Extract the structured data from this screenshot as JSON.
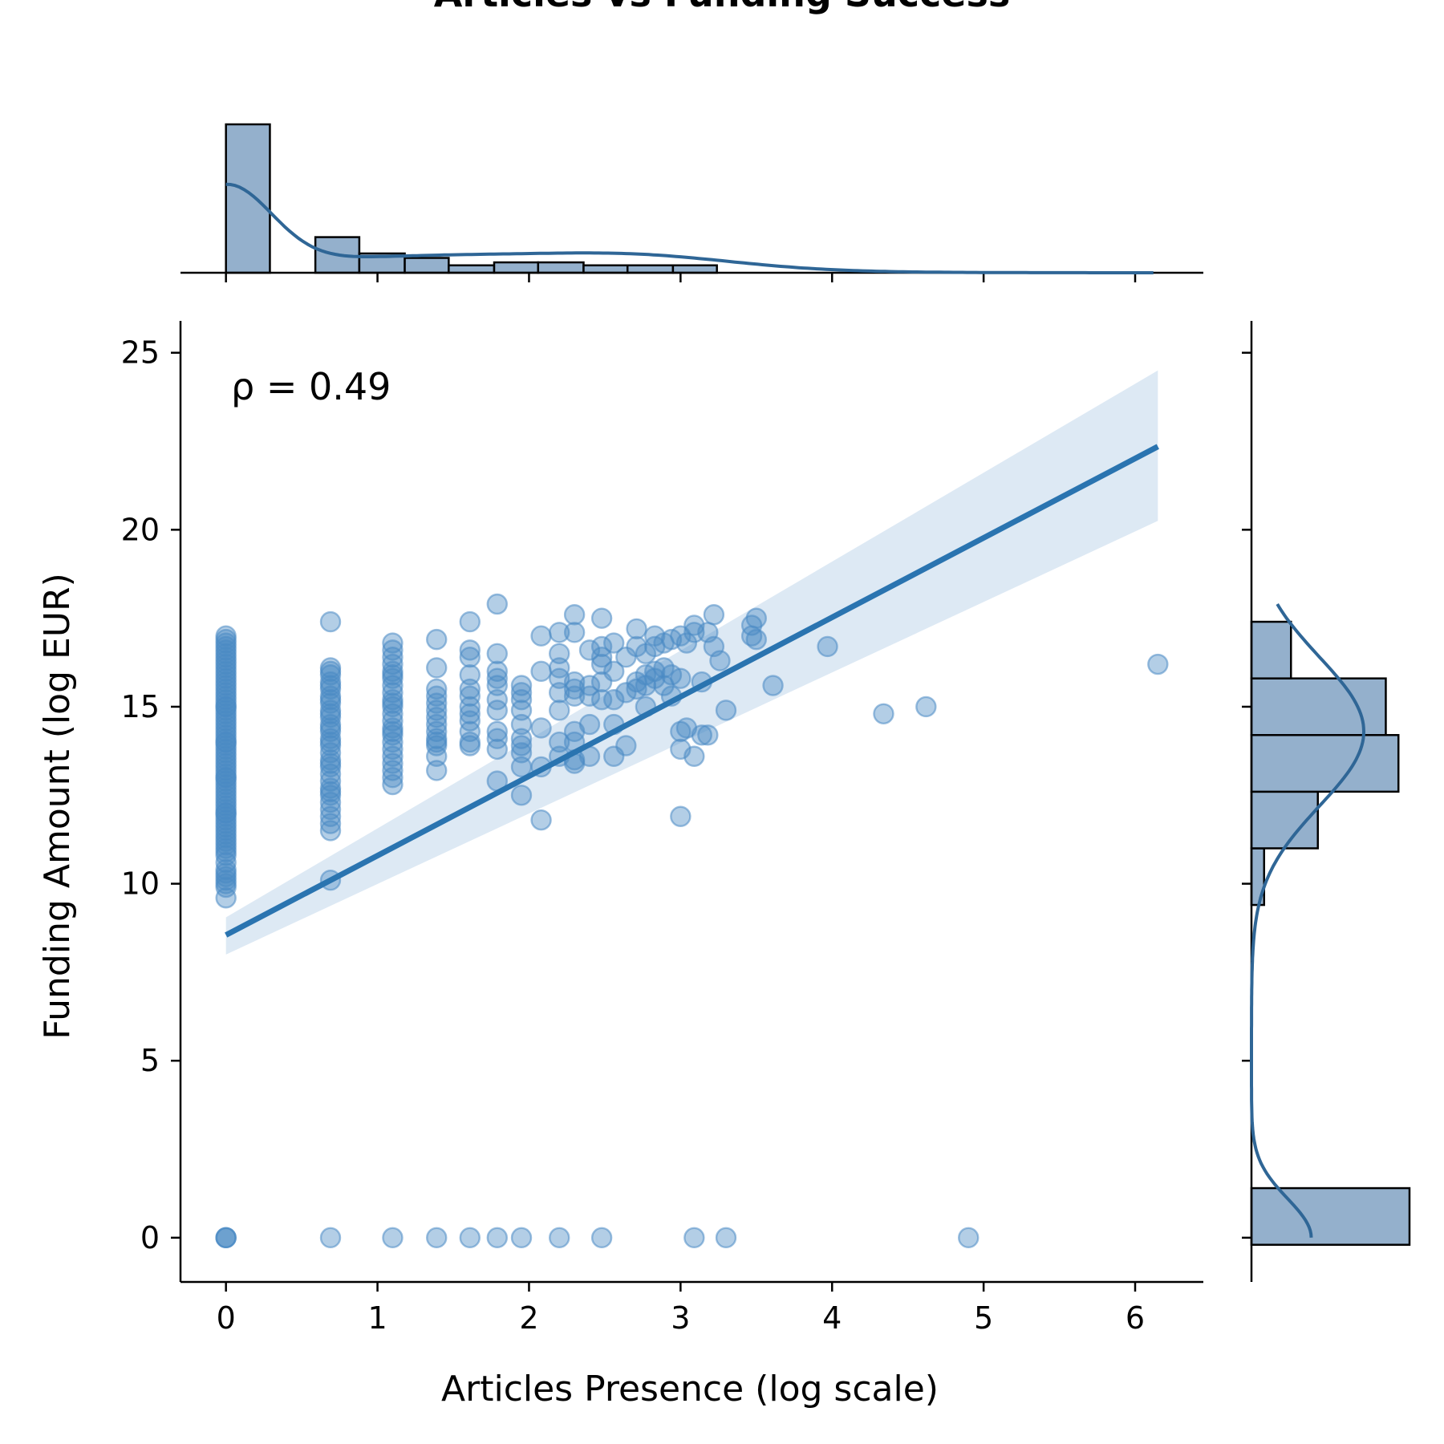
{
  "chart_data": {
    "type": "scatter",
    "title": "Articles vs Funding Success",
    "xlabel": "Articles Presence (log scale)",
    "ylabel": "Funding Amount (log EUR)",
    "xlim": [
      -0.3,
      6.45
    ],
    "ylim": [
      -1.25,
      25.9
    ],
    "x_ticks": [
      0,
      1,
      2,
      3,
      4,
      5,
      6
    ],
    "y_ticks": [
      0,
      5,
      10,
      15,
      20,
      25
    ],
    "grid": false,
    "legend": "none",
    "annotation": "ρ = 0.49",
    "colors": {
      "points": "#4a8ac4",
      "regression": "#2a74b0",
      "ci_band": "#dde9f4",
      "hist_fill": "#94b0cc",
      "kde": "#2f6696"
    },
    "regression": {
      "x": [
        0,
        6.15
      ],
      "y": [
        8.55,
        22.35
      ],
      "ci_upper_end": 24.5,
      "ci_lower_end": 20.25,
      "ci_upper_start": 9.05,
      "ci_lower_start": 8.0
    },
    "series": [
      {
        "x": [
          0,
          0,
          0,
          0,
          0,
          0,
          0,
          0,
          0,
          0,
          0,
          0,
          0,
          0,
          0,
          0,
          0,
          0,
          0,
          0,
          0,
          0,
          0,
          0,
          0,
          0,
          0,
          0,
          0,
          0,
          0,
          0,
          0,
          0,
          0,
          0,
          0,
          0,
          0,
          0,
          0,
          0,
          0,
          0,
          0,
          0,
          0,
          0,
          0,
          0,
          0,
          0,
          0,
          0,
          0,
          0,
          0,
          0,
          0,
          0,
          0,
          0,
          0,
          0,
          0,
          0,
          0,
          0,
          0,
          0,
          0,
          0,
          0,
          0,
          0,
          0,
          0,
          0
        ],
        "y": [
          17.0,
          16.8,
          16.6,
          16.4,
          16.2,
          16.0,
          15.8,
          15.6,
          15.4,
          15.2,
          15.0,
          14.8,
          14.6,
          14.4,
          14.2,
          14.0,
          13.8,
          13.6,
          13.4,
          13.2,
          13.0,
          12.8,
          12.6,
          12.4,
          12.2,
          12.0,
          11.8,
          11.6,
          11.4,
          11.2,
          11.0,
          10.8,
          10.6,
          10.4,
          10.2,
          10.0,
          9.6,
          16.9,
          16.5,
          16.1,
          15.7,
          15.3,
          14.9,
          14.5,
          14.1,
          13.7,
          13.3,
          12.9,
          12.5,
          12.1,
          11.7,
          11.3,
          10.9,
          10.3,
          9.9,
          15.9,
          15.1,
          14.3,
          13.5,
          12.7,
          11.9,
          11.1,
          16.3,
          15.5,
          14.7,
          13.9,
          13.1,
          12.3,
          11.5,
          10.1,
          14.0,
          13.0,
          12.0,
          16.7,
          15.0,
          0,
          0,
          0
        ]
      },
      {
        "x": [
          0.69,
          0.69,
          0.69,
          0.69,
          0.69,
          0.69,
          0.69,
          0.69,
          0.69,
          0.69,
          0.69,
          0.69,
          0.69,
          0.69,
          0.69,
          0.69,
          0.69,
          0.69,
          0.69,
          0.69,
          0.69,
          0.69,
          0.69,
          0.69,
          0.69,
          0.69,
          0.69,
          0.69,
          0.69,
          0.69,
          0.69,
          0.69,
          0.69,
          0.69,
          0.69
        ],
        "y": [
          17.4,
          16.1,
          15.9,
          15.7,
          15.5,
          15.3,
          15.1,
          14.9,
          14.7,
          14.5,
          14.3,
          14.1,
          13.9,
          13.7,
          13.5,
          13.3,
          13.1,
          12.9,
          12.7,
          12.5,
          12.3,
          12.1,
          11.9,
          11.7,
          11.5,
          10.1,
          16.0,
          15.6,
          15.2,
          14.8,
          14.4,
          14.0,
          13.4,
          12.6,
          0
        ]
      },
      {
        "x": [
          1.1,
          1.1,
          1.1,
          1.1,
          1.1,
          1.1,
          1.1,
          1.1,
          1.1,
          1.1,
          1.1,
          1.1,
          1.1,
          1.1,
          1.1,
          1.1,
          1.1,
          1.1,
          1.1,
          1.1,
          1.1,
          1.1,
          1.1,
          1.1,
          1.1
        ],
        "y": [
          16.8,
          16.6,
          16.4,
          16.2,
          16.0,
          15.8,
          15.6,
          15.4,
          15.2,
          15.0,
          14.8,
          14.6,
          14.4,
          14.2,
          14.0,
          13.8,
          13.6,
          13.4,
          13.2,
          13.0,
          12.8,
          15.9,
          15.1,
          14.3,
          0
        ]
      },
      {
        "x": [
          1.39,
          1.39,
          1.39,
          1.39,
          1.39,
          1.39,
          1.39,
          1.39,
          1.39,
          1.39,
          1.39,
          1.39,
          1.39,
          1.39,
          1.39
        ],
        "y": [
          16.9,
          16.1,
          15.5,
          15.3,
          15.1,
          14.9,
          14.7,
          14.5,
          14.3,
          14.1,
          13.9,
          13.6,
          13.2,
          14.0,
          0
        ]
      },
      {
        "x": [
          1.61,
          1.61,
          1.61,
          1.61,
          1.61,
          1.61,
          1.61,
          1.61,
          1.61,
          1.61,
          1.61,
          1.61,
          1.61
        ],
        "y": [
          17.4,
          16.6,
          16.4,
          15.9,
          15.5,
          15.3,
          15.0,
          14.8,
          14.6,
          14.3,
          14.0,
          13.9,
          0
        ]
      },
      {
        "x": [
          1.79,
          1.79,
          1.79,
          1.79,
          1.79,
          1.79,
          1.79,
          1.79,
          1.79,
          1.79,
          1.79,
          1.79
        ],
        "y": [
          17.9,
          16.5,
          16.0,
          15.8,
          15.6,
          15.2,
          14.9,
          14.3,
          14.1,
          13.8,
          12.9,
          0
        ]
      },
      {
        "x": [
          1.95,
          1.95,
          1.95,
          1.95,
          1.95,
          1.95,
          1.95,
          1.95,
          1.95,
          1.95,
          1.95
        ],
        "y": [
          15.6,
          15.4,
          15.2,
          14.9,
          14.5,
          14.1,
          13.9,
          13.7,
          13.3,
          12.5,
          0
        ]
      },
      {
        "x": [
          2.08,
          2.08,
          2.08,
          2.08,
          2.08,
          2.2,
          2.2,
          2.2,
          2.2,
          2.2,
          2.2,
          2.2,
          2.2,
          2.2,
          2.3,
          2.3,
          2.3,
          2.3,
          2.3,
          2.3,
          2.3,
          2.3,
          2.3,
          2.4,
          2.4,
          2.4,
          2.4,
          2.4,
          2.48,
          2.48,
          2.48,
          2.48,
          2.48,
          2.48,
          2.48,
          2.56,
          2.56,
          2.56,
          2.56,
          2.56
        ],
        "y": [
          17.0,
          16.0,
          14.4,
          13.3,
          11.8,
          17.1,
          16.5,
          16.1,
          15.8,
          15.4,
          14.9,
          14.0,
          13.6,
          0,
          17.6,
          17.1,
          15.7,
          15.5,
          15.3,
          14.3,
          14.0,
          13.5,
          13.4,
          16.6,
          15.6,
          15.3,
          14.5,
          13.6,
          17.5,
          16.7,
          16.4,
          16.2,
          15.7,
          15.2,
          0,
          16.8,
          16.0,
          15.2,
          14.5,
          13.6
        ]
      },
      {
        "x": [
          2.64,
          2.64,
          2.64,
          2.71,
          2.71,
          2.71,
          2.71,
          2.77,
          2.77,
          2.77,
          2.77,
          2.83,
          2.83,
          2.83,
          2.83,
          2.89,
          2.89,
          2.89,
          2.94,
          2.94,
          2.94,
          3.0,
          3.0,
          3.0,
          3.0,
          3.0,
          3.04,
          3.04,
          3.09,
          3.09,
          3.09,
          3.14,
          3.14,
          3.18,
          3.18,
          3.22,
          3.22,
          3.26,
          3.3,
          3.3,
          3.47,
          3.47,
          3.5,
          3.5,
          3.61,
          3.97,
          4.34,
          4.62,
          6.15
        ],
        "y": [
          16.4,
          15.4,
          13.9,
          17.2,
          16.7,
          15.7,
          15.5,
          16.5,
          15.9,
          15.6,
          15.0,
          17.0,
          16.7,
          16.0,
          15.8,
          16.8,
          16.1,
          15.6,
          16.9,
          15.9,
          15.3,
          17.0,
          15.8,
          14.3,
          13.8,
          11.9,
          16.8,
          14.4,
          17.3,
          17.1,
          13.6,
          15.7,
          14.2,
          17.1,
          14.2,
          17.6,
          16.7,
          16.3,
          14.9,
          0,
          17.3,
          17.0,
          17.5,
          16.9,
          15.6,
          16.7,
          14.8,
          15.0,
          16.2
        ]
      },
      {
        "x": [
          3.09,
          4.9
        ],
        "y": [
          0,
          0
        ]
      }
    ],
    "top_histogram": {
      "bin_edges": [
        0,
        0.29,
        0.59,
        0.88,
        1.18,
        1.47,
        1.77,
        2.06,
        2.36,
        2.65,
        2.95,
        3.24
      ],
      "counts": [
        100,
        0,
        24,
        13,
        10,
        5,
        7,
        7,
        5,
        5,
        5
      ]
    },
    "right_histogram": {
      "bin_edges": [
        -0.2,
        1.4,
        3.0,
        4.6,
        6.2,
        7.8,
        9.4,
        11.0,
        12.6,
        14.2,
        15.8,
        17.4
      ],
      "counts": [
        100,
        0,
        0,
        0,
        0,
        0,
        8,
        42,
        93,
        85,
        25
      ]
    }
  }
}
